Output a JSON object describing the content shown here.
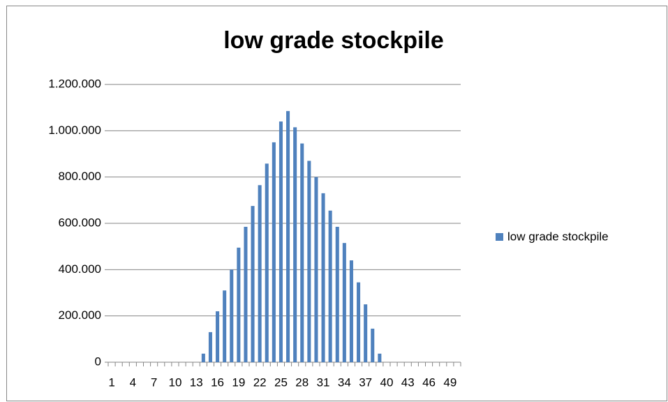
{
  "chart_data": {
    "type": "bar",
    "title": "low grade stockpile",
    "categories": [
      "1",
      null,
      null,
      "4",
      null,
      null,
      "7",
      null,
      null,
      "10",
      null,
      null,
      "13",
      null,
      null,
      "16",
      null,
      null,
      "19",
      null,
      null,
      "22",
      null,
      null,
      "25",
      null,
      null,
      "28",
      null,
      null,
      "31",
      null,
      null,
      "34",
      null,
      null,
      "37",
      null,
      null,
      "40",
      null,
      null,
      "43",
      null,
      null,
      "46",
      null,
      null,
      "49",
      null
    ],
    "series": [
      {
        "name": "low grade stockpile",
        "color": "#4f81bd",
        "values": [
          0,
          0,
          0,
          0,
          0,
          0,
          0,
          0,
          0,
          0,
          0,
          0,
          0,
          37000,
          130000,
          220000,
          310000,
          400000,
          495000,
          585000,
          675000,
          765000,
          858000,
          950000,
          1040000,
          1085000,
          1015000,
          945000,
          870000,
          800000,
          730000,
          655000,
          585000,
          515000,
          440000,
          345000,
          250000,
          145000,
          37000,
          0,
          0,
          0,
          0,
          0,
          0,
          0,
          0,
          0,
          0,
          0
        ]
      }
    ],
    "ylim": [
      0,
      1200000
    ],
    "yticks": [
      0,
      {
        "value": 200000,
        "label": "200.000"
      },
      {
        "value": 400000,
        "label": "400.000"
      },
      {
        "value": 600000,
        "label": "600.000"
      },
      {
        "value": 800000,
        "label": "800.000"
      },
      {
        "value": 1000000,
        "label": "1.000.000"
      },
      {
        "value": 1200000,
        "label": "1.200.000"
      }
    ],
    "grid": true,
    "legend": "right"
  }
}
